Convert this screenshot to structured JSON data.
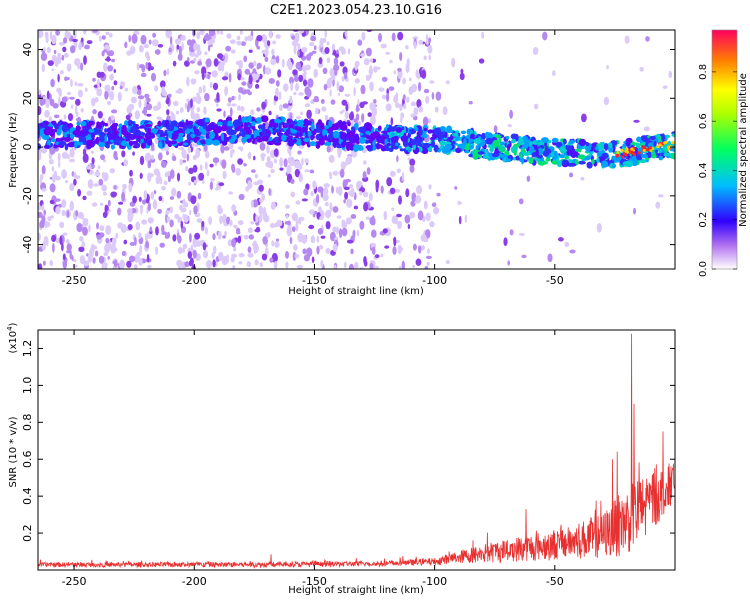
{
  "figure": {
    "title": "C2E1.2023.054.23.10.G16"
  },
  "chart_data": [
    {
      "type": "heatmap",
      "xlabel": "Height of straight line (km)",
      "ylabel": "Frequency (Hz)",
      "xlim": [
        -265,
        0
      ],
      "ylim": [
        -50,
        48
      ],
      "xticks": [
        -250,
        -200,
        -150,
        -100,
        -50
      ],
      "yticks": [
        -40,
        -20,
        0,
        20,
        40
      ],
      "main_band": [
        {
          "x": -260,
          "freq": 5
        },
        {
          "x": -220,
          "freq": 5
        },
        {
          "x": -175,
          "freq": 7
        },
        {
          "x": -125,
          "freq": 4
        },
        {
          "x": -95,
          "freq": 3
        },
        {
          "x": -75,
          "freq": 0
        },
        {
          "x": -50,
          "freq": -2
        },
        {
          "x": -25,
          "freq": -3
        },
        {
          "x": 0,
          "freq": 1
        }
      ],
      "colorbar": {
        "label": "Normalized spectral amplitude",
        "range": [
          0,
          0.97
        ],
        "ticks": [
          0.0,
          0.2,
          0.4,
          0.6,
          0.8
        ]
      }
    },
    {
      "type": "line",
      "xlabel": "Height of straight line (km)",
      "ylabel": "SNR (10 * v/v)",
      "y_multiplier": "(x10",
      "y_multiplier_exp": "4",
      "y_multiplier_close": ")",
      "xlim": [
        -265,
        0
      ],
      "ylim": [
        0,
        1.3
      ],
      "xticks": [
        -250,
        -200,
        -150,
        -100,
        -50
      ],
      "yticks": [
        0.2,
        0.4,
        0.6,
        0.8,
        1.0,
        1.2
      ],
      "color": "#e83030",
      "envelope": [
        {
          "x": -265,
          "base": 0.025,
          "amp": 0.025
        },
        {
          "x": -170,
          "base": 0.025,
          "amp": 0.03
        },
        {
          "x": -120,
          "base": 0.03,
          "amp": 0.03
        },
        {
          "x": -100,
          "base": 0.04,
          "amp": 0.04
        },
        {
          "x": -90,
          "base": 0.06,
          "amp": 0.07
        },
        {
          "x": -75,
          "base": 0.08,
          "amp": 0.12
        },
        {
          "x": -60,
          "base": 0.1,
          "amp": 0.15
        },
        {
          "x": -45,
          "base": 0.12,
          "amp": 0.18
        },
        {
          "x": -30,
          "base": 0.15,
          "amp": 0.25
        },
        {
          "x": -22,
          "base": 0.2,
          "amp": 0.35
        },
        {
          "x": -15,
          "base": 0.25,
          "amp": 0.4
        },
        {
          "x": -8,
          "base": 0.35,
          "amp": 0.35
        },
        {
          "x": 0,
          "base": 0.45,
          "amp": 0.2
        }
      ],
      "spikes": [
        {
          "x": -168,
          "y": 0.085
        },
        {
          "x": -62,
          "y": 0.33
        },
        {
          "x": -26,
          "y": 0.6
        },
        {
          "x": -24,
          "y": 0.64
        },
        {
          "x": -18,
          "y": 1.28
        },
        {
          "x": -17,
          "y": 0.9
        },
        {
          "x": -15,
          "y": 0.42
        },
        {
          "x": -5,
          "y": 0.75
        }
      ]
    }
  ]
}
